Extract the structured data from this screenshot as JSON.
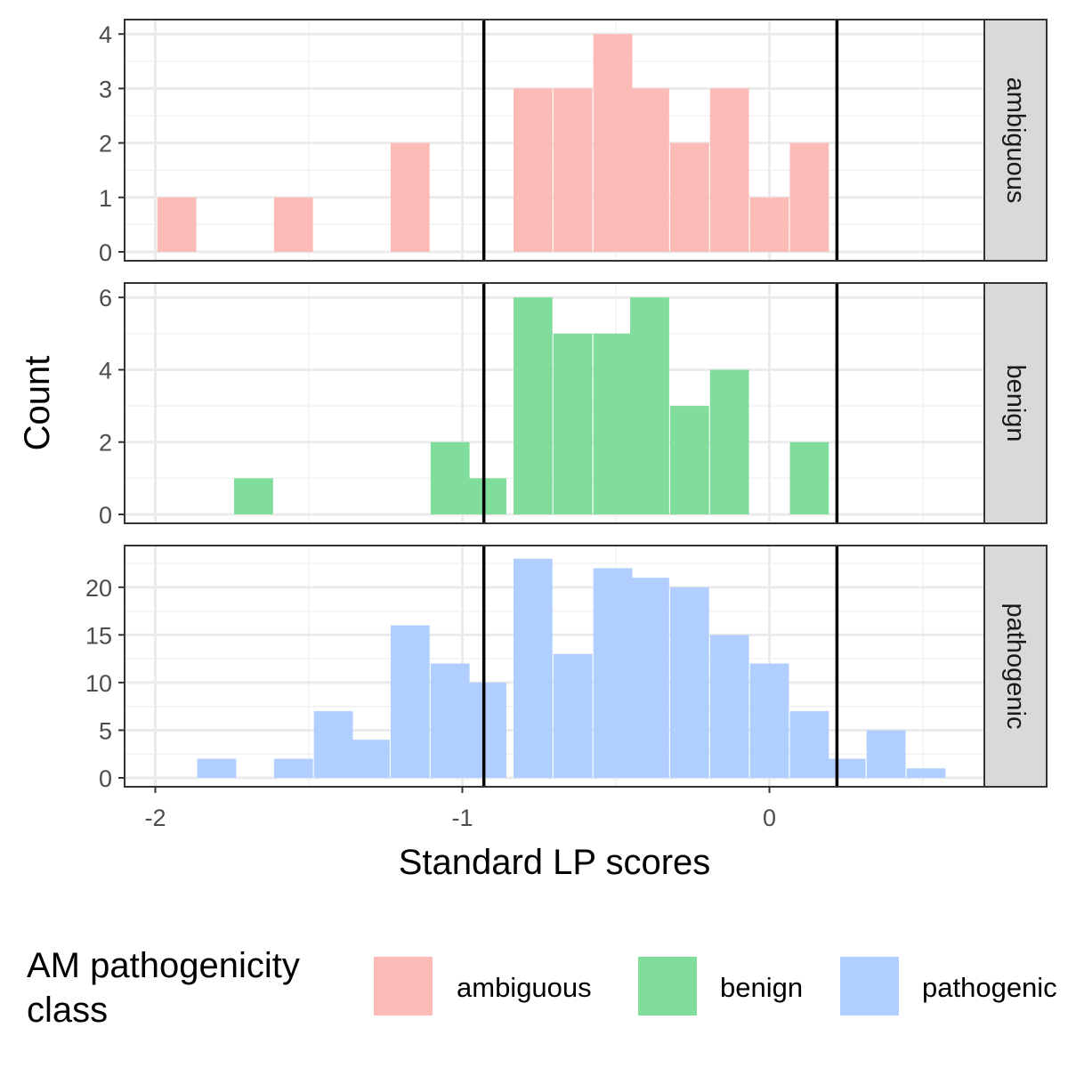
{
  "chart_data": {
    "type": "bar",
    "subtype": "faceted-histogram",
    "xlabel": "Standard LP scores",
    "ylabel": "Count",
    "xlim": [
      -2.1,
      0.7
    ],
    "x_ticks": [
      -2,
      -1,
      0
    ],
    "x_tick_labels": [
      "-2",
      "-1",
      "0"
    ],
    "bin_width": 0.1268,
    "reference_lines": [
      -0.93,
      0.22
    ],
    "grid": true,
    "legend": {
      "title": "AM pathogenicity class",
      "position": "bottom",
      "entries": [
        "ambiguous",
        "benign",
        "pathogenic"
      ]
    },
    "facets": [
      {
        "name": "ambiguous",
        "color": "#F8766D",
        "ylim": [
          0,
          4.2
        ],
        "y_ticks": [
          0,
          1,
          2,
          3,
          4
        ],
        "bins": [
          {
            "x": -1.93,
            "count": 1
          },
          {
            "x": -1.55,
            "count": 1
          },
          {
            "x": -1.17,
            "count": 2
          },
          {
            "x": -0.77,
            "count": 3
          },
          {
            "x": -0.64,
            "count": 3
          },
          {
            "x": -0.51,
            "count": 4
          },
          {
            "x": -0.39,
            "count": 3
          },
          {
            "x": -0.26,
            "count": 2
          },
          {
            "x": -0.13,
            "count": 3
          },
          {
            "x": 0.0,
            "count": 1
          },
          {
            "x": 0.13,
            "count": 2
          }
        ]
      },
      {
        "name": "benign",
        "color": "#00BA38",
        "ylim": [
          0,
          6.3
        ],
        "y_ticks": [
          0,
          2,
          4,
          6
        ],
        "bins": [
          {
            "x": -1.68,
            "count": 1
          },
          {
            "x": -1.04,
            "count": 2
          },
          {
            "x": -0.92,
            "count": 1
          },
          {
            "x": -0.77,
            "count": 6
          },
          {
            "x": -0.64,
            "count": 5
          },
          {
            "x": -0.51,
            "count": 5
          },
          {
            "x": -0.39,
            "count": 6
          },
          {
            "x": -0.26,
            "count": 3
          },
          {
            "x": -0.13,
            "count": 4
          },
          {
            "x": 0.13,
            "count": 2
          }
        ]
      },
      {
        "name": "pathogenic",
        "color": "#619CFF",
        "ylim": [
          0,
          24
        ],
        "y_ticks": [
          0,
          5,
          10,
          15,
          20
        ],
        "bins": [
          {
            "x": -1.8,
            "count": 2
          },
          {
            "x": -1.55,
            "count": 2
          },
          {
            "x": -1.42,
            "count": 7
          },
          {
            "x": -1.3,
            "count": 4
          },
          {
            "x": -1.17,
            "count": 16
          },
          {
            "x": -1.04,
            "count": 12
          },
          {
            "x": -0.92,
            "count": 10
          },
          {
            "x": -0.77,
            "count": 23
          },
          {
            "x": -0.64,
            "count": 13
          },
          {
            "x": -0.51,
            "count": 22
          },
          {
            "x": -0.39,
            "count": 21
          },
          {
            "x": -0.26,
            "count": 20
          },
          {
            "x": -0.13,
            "count": 15
          },
          {
            "x": 0.0,
            "count": 12
          },
          {
            "x": 0.13,
            "count": 7
          },
          {
            "x": 0.25,
            "count": 2
          },
          {
            "x": 0.38,
            "count": 5
          },
          {
            "x": 0.51,
            "count": 1
          }
        ]
      }
    ]
  }
}
